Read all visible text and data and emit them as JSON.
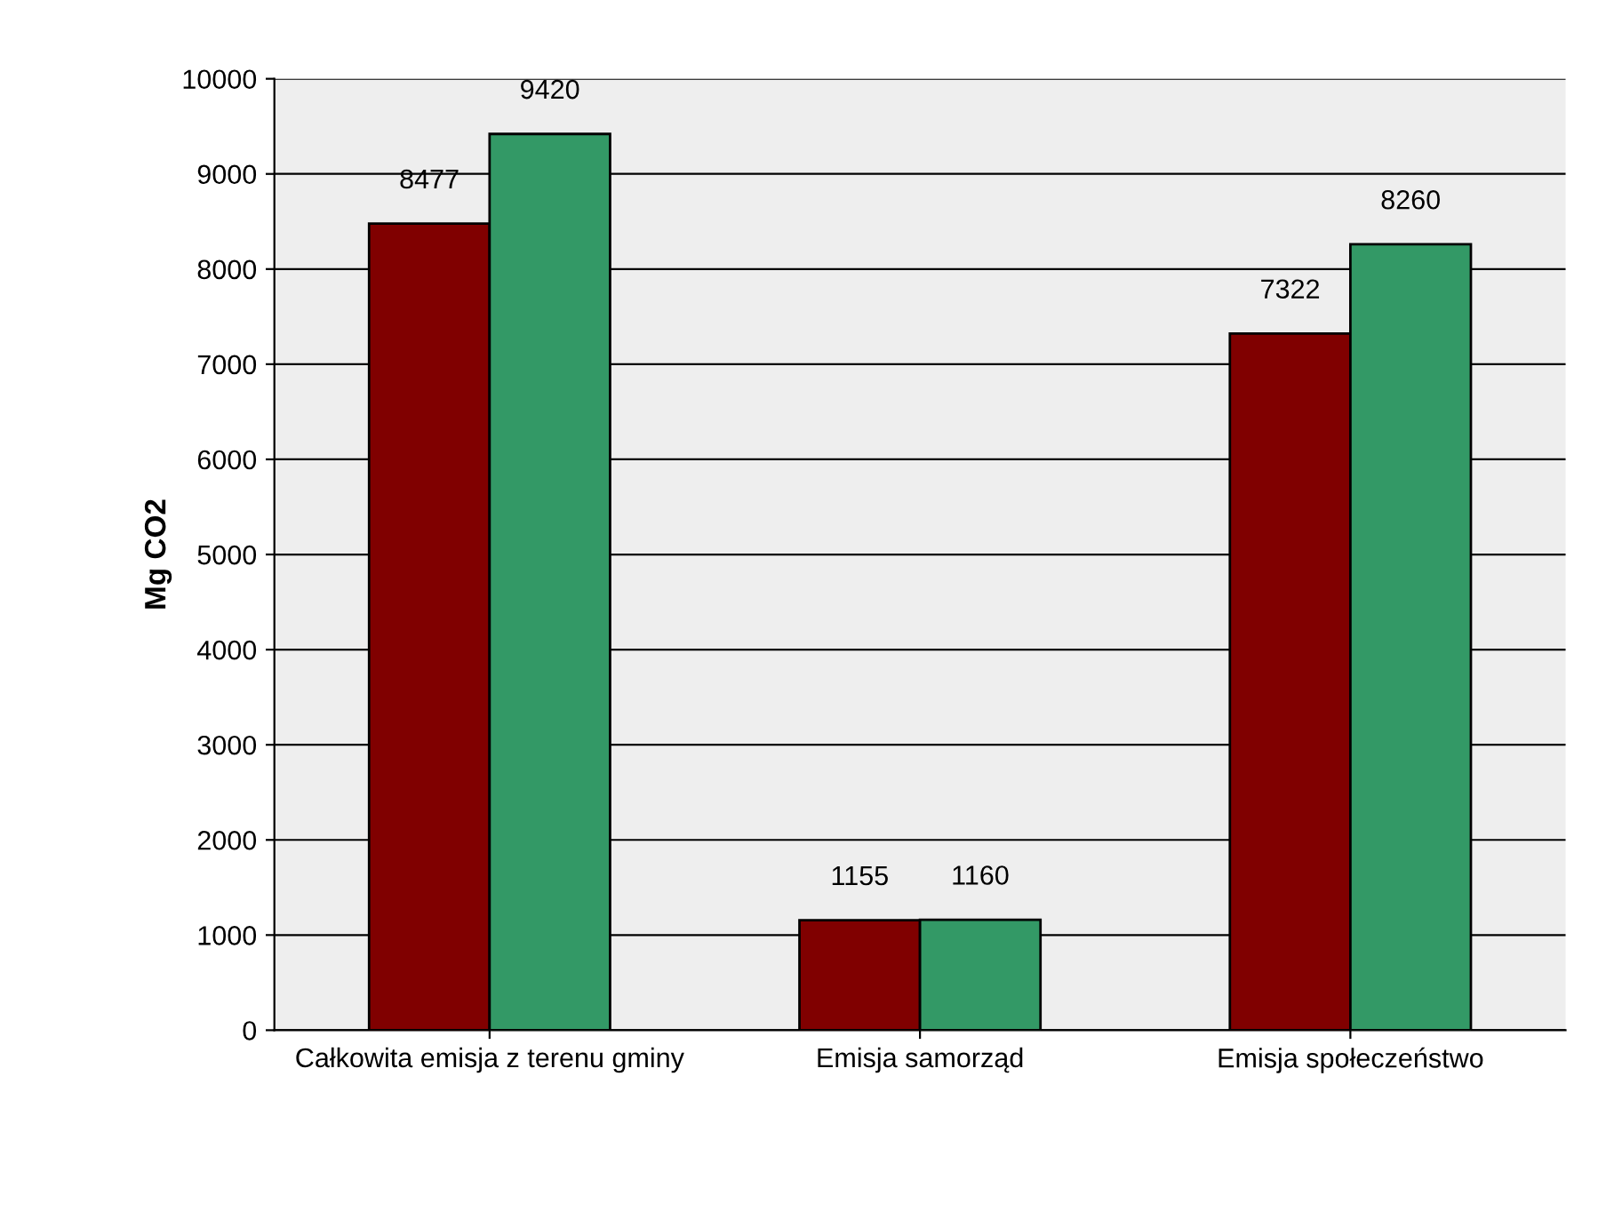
{
  "chart_data": {
    "type": "bar",
    "ylabel": "Mg CO2",
    "categories": [
      "Całkowita emisja z terenu gminy",
      "Emisja samorząd",
      "Emisja społeczeństwo"
    ],
    "series": [
      {
        "color": "#800000",
        "values": [
          8477,
          1155,
          7322
        ]
      },
      {
        "color": "#339966",
        "values": [
          9420,
          1160,
          8260
        ]
      }
    ],
    "ylim": [
      0,
      10000
    ],
    "yticks": [
      0,
      1000,
      2000,
      3000,
      4000,
      5000,
      6000,
      7000,
      8000,
      9000,
      10000
    ],
    "grid": "y",
    "data_labels": true
  }
}
